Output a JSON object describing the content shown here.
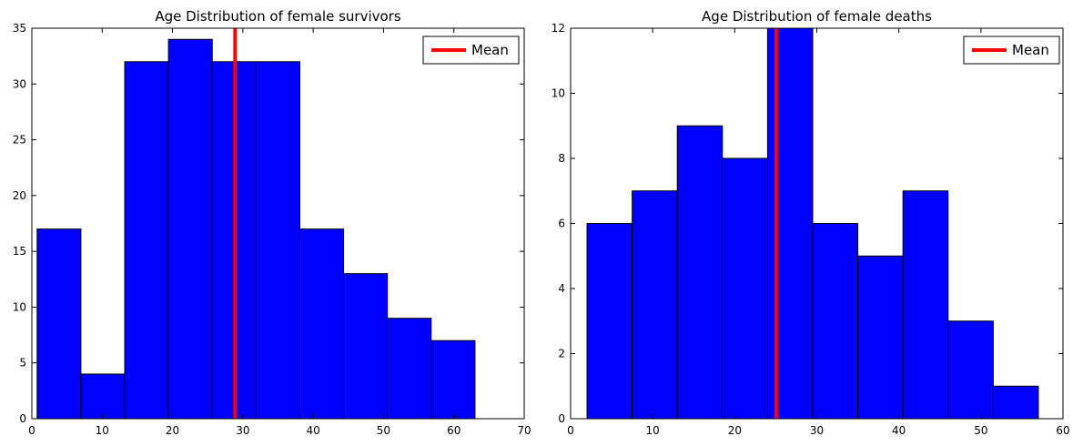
{
  "chart_data": [
    {
      "type": "bar",
      "subtype": "histogram",
      "title": "Age Distribution of female survivors",
      "xlabel": "",
      "ylabel": "",
      "xlim": [
        0,
        70
      ],
      "ylim": [
        0,
        35
      ],
      "xticks": [
        0,
        10,
        20,
        30,
        40,
        50,
        60,
        70
      ],
      "yticks": [
        0,
        5,
        10,
        15,
        20,
        25,
        30,
        35
      ],
      "bin_edges": [
        0.75,
        6.975,
        13.2,
        19.425,
        25.65,
        31.875,
        38.1,
        44.325,
        50.55,
        56.775,
        63.0
      ],
      "values": [
        17,
        4,
        32,
        34,
        32,
        32,
        17,
        13,
        9,
        7
      ],
      "bar_color": "#0000ff",
      "mean": 28.9,
      "mean_color": "#ff0000",
      "legend": {
        "entries": [
          "Mean"
        ],
        "loc": "upper right"
      },
      "grid": false
    },
    {
      "type": "bar",
      "subtype": "histogram",
      "title": "Age Distribution of female deaths",
      "xlabel": "",
      "ylabel": "",
      "xlim": [
        0,
        60
      ],
      "ylim": [
        0,
        12
      ],
      "xticks": [
        0,
        10,
        20,
        30,
        40,
        50,
        60
      ],
      "yticks": [
        0,
        2,
        4,
        6,
        8,
        10,
        12
      ],
      "bin_edges": [
        2.0,
        7.5,
        13.0,
        18.5,
        24.0,
        29.5,
        35.0,
        40.5,
        46.0,
        51.5,
        57.0
      ],
      "values": [
        6,
        7,
        9,
        8,
        12,
        6,
        5,
        7,
        3,
        1
      ],
      "bar_color": "#0000ff",
      "mean": 25.05,
      "mean_color": "#ff0000",
      "legend": {
        "entries": [
          "Mean"
        ],
        "loc": "upper right"
      },
      "grid": false
    }
  ]
}
